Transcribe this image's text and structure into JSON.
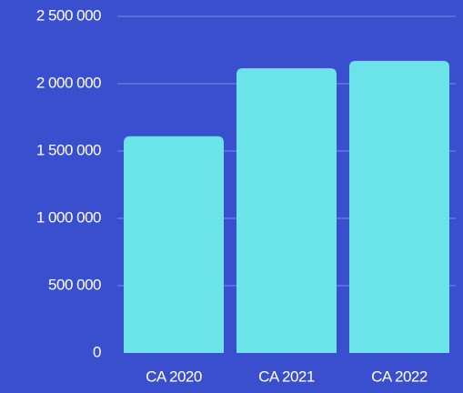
{
  "chart_data": {
    "type": "bar",
    "categories": [
      "CA 2020",
      "CA 2021",
      "CA 2022"
    ],
    "values": [
      1610000,
      2115000,
      2170000
    ],
    "color": "#6ae4e8",
    "ylim": [
      0,
      2500000
    ],
    "yticks": [
      0,
      {
        "value": 500000,
        "label": "500 000"
      },
      {
        "value": 1000000,
        "label": "1 000 000"
      },
      {
        "value": 1500000,
        "label": "1 500 000"
      },
      {
        "value": 2000000,
        "label": "2 000 000"
      },
      {
        "value": 2500000,
        "label": "2 500 000"
      }
    ],
    "grid": true
  }
}
